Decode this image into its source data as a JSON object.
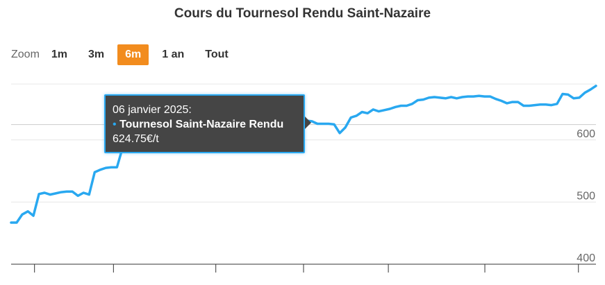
{
  "title": "Cours du Tournesol Rendu Saint-Nazaire",
  "zoom": {
    "label": "Zoom",
    "buttons": [
      "1m",
      "3m",
      "6m",
      "1 an",
      "Tout"
    ],
    "active": "6m"
  },
  "tooltip": {
    "date": "06 janvier 2025:",
    "bullet": "•",
    "series": "Tournesol Saint-Nazaire Rendu",
    "value": "624.75€/t"
  },
  "colors": {
    "line": "#29a8f0",
    "accent": "#f28c1e",
    "tooltip_bg": "#454545"
  },
  "chart_data": {
    "type": "line",
    "title": "Cours du Tournesol Rendu Saint-Nazaire",
    "series": [
      {
        "name": "Tournesol Saint-Nazaire Rendu",
        "unit": "€/t",
        "values": [
          467,
          467,
          480,
          485,
          478,
          513,
          515,
          512,
          514,
          516,
          517,
          517,
          510,
          515,
          512,
          548,
          552,
          555,
          556,
          556,
          587,
          589,
          590,
          595,
          600,
          605,
          608,
          612,
          615,
          616,
          617,
          618,
          619,
          619,
          620,
          621,
          620,
          619,
          618,
          618,
          617,
          616,
          621,
          624.75,
          625,
          624,
          626,
          628,
          629,
          630,
          629,
          629,
          630,
          631,
          630,
          626,
          626,
          626,
          625,
          611,
          620,
          636,
          639,
          645,
          643,
          649,
          646,
          648,
          650,
          653,
          655,
          655,
          658,
          664,
          665,
          668,
          669,
          668,
          667,
          669,
          667,
          669,
          670,
          670,
          671,
          670,
          670,
          666,
          663,
          659,
          661,
          661,
          655,
          655,
          656,
          657,
          657,
          656,
          658,
          674,
          673,
          667,
          668,
          676,
          681,
          687
        ]
      }
    ],
    "y_ticks": [
      400,
      500,
      600
    ],
    "ylim": [
      400,
      690
    ],
    "grid": true,
    "legend": "none",
    "tooltip_point": {
      "x_label": "06 janvier 2025",
      "y": 624.75
    }
  }
}
